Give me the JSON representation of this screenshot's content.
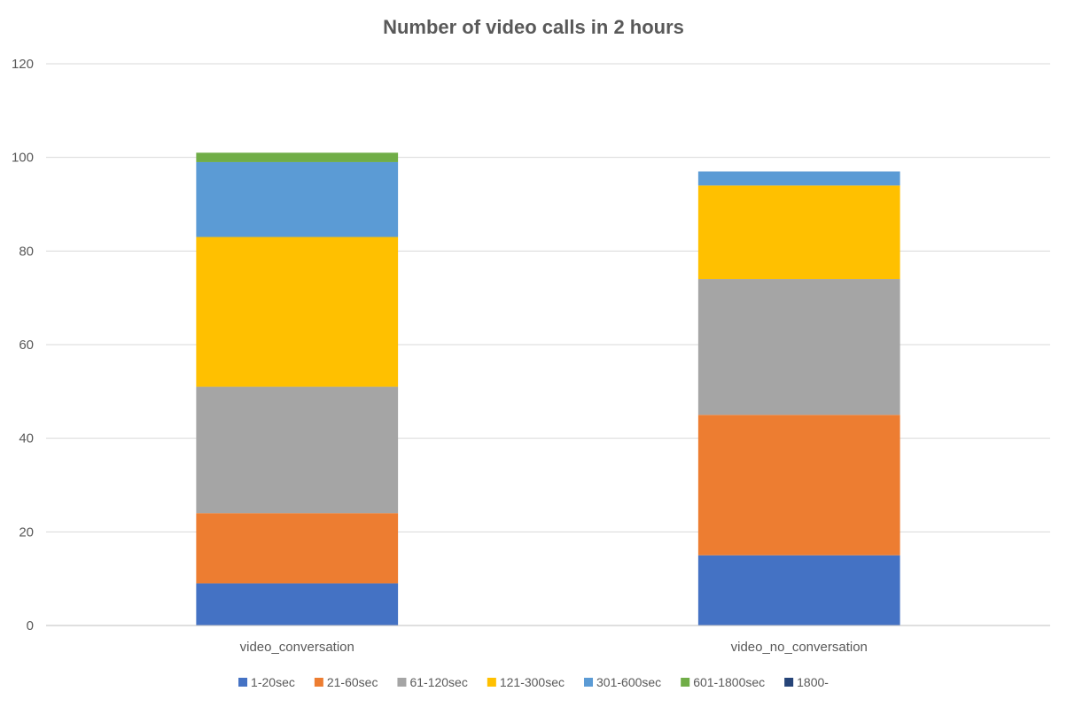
{
  "chart_data": {
    "type": "bar",
    "stacked": true,
    "title": "Number of video calls in 2 hours",
    "xlabel": "",
    "ylabel": "",
    "ylim": [
      0,
      120
    ],
    "yticks": [
      0,
      20,
      40,
      60,
      80,
      100,
      120
    ],
    "grid": true,
    "legend_position": "bottom",
    "categories": [
      "video_conversation",
      "video_no_conversation"
    ],
    "series": [
      {
        "name": "1-20sec",
        "color": "#4472C4",
        "values": [
          9,
          15
        ]
      },
      {
        "name": "21-60sec",
        "color": "#ED7D31",
        "values": [
          15,
          30
        ]
      },
      {
        "name": "61-120sec",
        "color": "#A5A5A5",
        "values": [
          27,
          29
        ]
      },
      {
        "name": "121-300sec",
        "color": "#FFC000",
        "values": [
          32,
          20
        ]
      },
      {
        "name": "301-600sec",
        "color": "#5B9BD5",
        "values": [
          16,
          3
        ]
      },
      {
        "name": "601-1800sec",
        "color": "#70AD47",
        "values": [
          2,
          0
        ]
      },
      {
        "name": "1800-",
        "color": "#264478",
        "values": [
          0,
          0
        ]
      }
    ]
  }
}
